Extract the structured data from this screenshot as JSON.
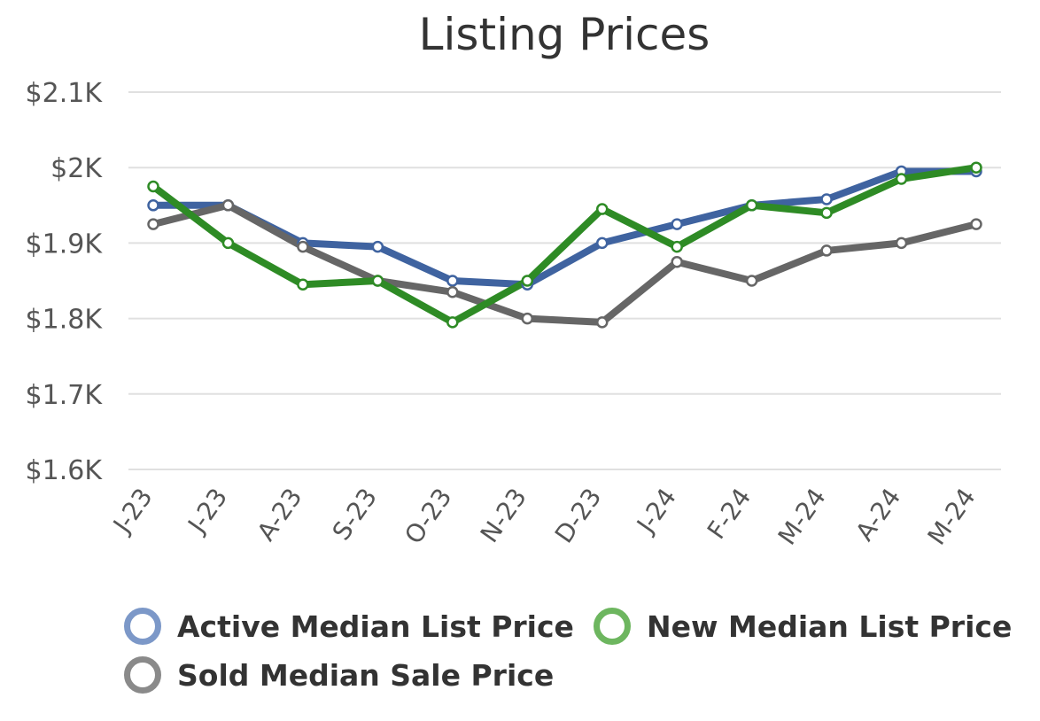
{
  "chart_data": {
    "type": "line",
    "title": "Listing Prices",
    "categories": [
      "J-23",
      "J-23",
      "A-23",
      "S-23",
      "O-23",
      "N-23",
      "D-23",
      "J-24",
      "F-24",
      "M-24",
      "A-24",
      "M-24"
    ],
    "y_ticks": [
      "$2.1K",
      "$2K",
      "$1.9K",
      "$1.8K",
      "$1.7K",
      "$1.6K"
    ],
    "ylim": [
      1600,
      2100
    ],
    "grid": true,
    "legend_position": "bottom",
    "series": [
      {
        "name": "Active Median List Price",
        "color": "#3f63a0",
        "legend_color": "#7c98c8",
        "values": [
          1950,
          1950,
          1900,
          1895,
          1850,
          1845,
          1900,
          1925,
          1950,
          1958,
          1995,
          1995
        ]
      },
      {
        "name": "New Median List Price",
        "color": "#2e8b25",
        "legend_color": "#6db65f",
        "values": [
          1975,
          1900,
          1845,
          1850,
          1795,
          1850,
          1945,
          1895,
          1950,
          1940,
          1985,
          2000
        ]
      },
      {
        "name": "Sold Median Sale Price",
        "color": "#666666",
        "legend_color": "#8a8a8a",
        "values": [
          1925,
          1950,
          1895,
          1850,
          1835,
          1800,
          1795,
          1875,
          1850,
          1890,
          1900,
          1925
        ]
      }
    ]
  }
}
